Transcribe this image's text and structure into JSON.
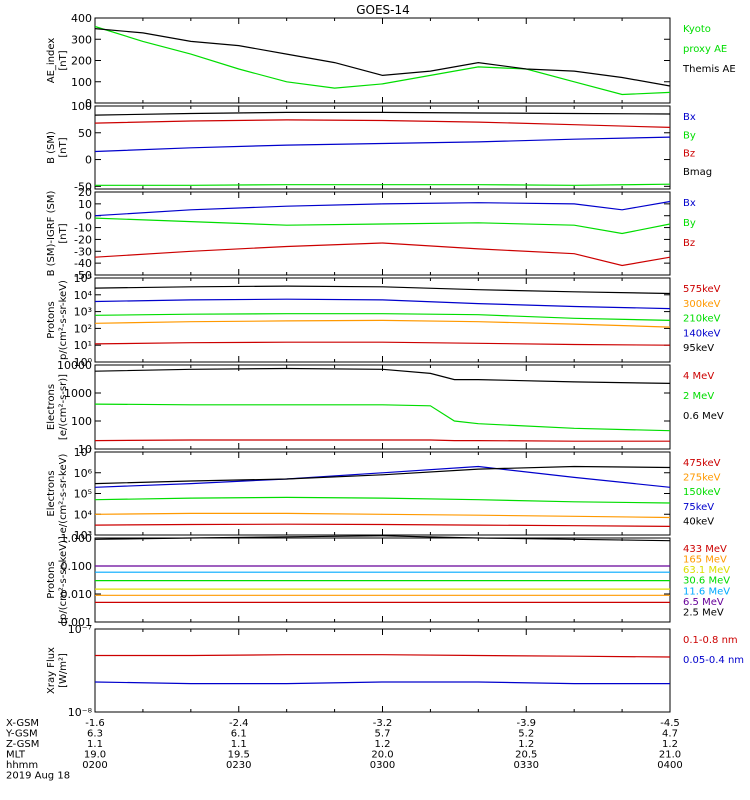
{
  "title": "GOES-14",
  "colors": {
    "black": "#000000",
    "red": "#cc0000",
    "green": "#00dd00",
    "blue": "#0000cc",
    "orange": "#ff9900",
    "yellow": "#dddd00",
    "cyan": "#00aaff",
    "purple": "#660099"
  },
  "chart_data": [
    {
      "type": "line",
      "ylabel": [
        "AE_index",
        "[nT]"
      ],
      "yscale": "linear",
      "ylim": [
        0,
        400
      ],
      "yticks": [
        0,
        100,
        200,
        300,
        400
      ],
      "yticklabels": [
        "0",
        "100",
        "200",
        "300",
        "400"
      ],
      "x": [
        "02:00",
        "02:10",
        "02:20",
        "02:30",
        "02:40",
        "02:50",
        "03:00",
        "03:10",
        "03:20",
        "03:30",
        "03:40",
        "03:50",
        "04:00"
      ],
      "series": [
        {
          "name": "Kyoto proxy AE",
          "label_lines": [
            "Kyoto",
            "proxy AE"
          ],
          "color": "green",
          "values": [
            360,
            290,
            230,
            160,
            100,
            70,
            90,
            130,
            170,
            160,
            100,
            40,
            50
          ]
        },
        {
          "name": "Themis AE",
          "label_lines": [
            "Themis AE"
          ],
          "color": "black",
          "values": [
            350,
            330,
            290,
            270,
            230,
            190,
            130,
            150,
            190,
            160,
            150,
            120,
            80
          ]
        }
      ]
    },
    {
      "type": "line",
      "ylabel": [
        "B (SM)",
        "[nT]"
      ],
      "yscale": "linear",
      "ylim": [
        -55,
        100
      ],
      "yticks": [
        -50,
        0,
        50,
        100
      ],
      "yticklabels": [
        "-50",
        "0",
        "50",
        "100"
      ],
      "x": [
        "02:00",
        "02:20",
        "02:40",
        "03:00",
        "03:20",
        "03:40",
        "04:00"
      ],
      "series": [
        {
          "name": "Bx",
          "label_lines": [
            "Bx"
          ],
          "color": "blue",
          "values": [
            15,
            22,
            27,
            30,
            33,
            38,
            42
          ]
        },
        {
          "name": "By",
          "label_lines": [
            "By"
          ],
          "color": "green",
          "values": [
            -48,
            -48,
            -47,
            -47,
            -47,
            -48,
            -46
          ]
        },
        {
          "name": "Bz",
          "label_lines": [
            "Bz"
          ],
          "color": "red",
          "values": [
            68,
            72,
            74,
            73,
            70,
            65,
            60
          ]
        },
        {
          "name": "Bmag",
          "label_lines": [
            "Bmag"
          ],
          "color": "black",
          "values": [
            83,
            86,
            88,
            88,
            87,
            86,
            85
          ]
        }
      ]
    },
    {
      "type": "line",
      "ylabel": [
        "B (SM)-IGRF (SM)",
        "[nT]"
      ],
      "yscale": "linear",
      "ylim": [
        -50,
        20
      ],
      "yticks": [
        -50,
        -40,
        -30,
        -20,
        -10,
        0,
        10,
        20
      ],
      "yticklabels": [
        "-50",
        "-40",
        "-30",
        "-20",
        "-10",
        "0",
        "10",
        "20"
      ],
      "x": [
        "02:00",
        "02:20",
        "02:40",
        "03:00",
        "03:20",
        "03:40",
        "03:50",
        "04:00"
      ],
      "series": [
        {
          "name": "Bx",
          "label_lines": [
            "Bx"
          ],
          "color": "blue",
          "values": [
            0,
            5,
            8,
            10,
            11,
            10,
            5,
            12
          ]
        },
        {
          "name": "By",
          "label_lines": [
            "By"
          ],
          "color": "green",
          "values": [
            -2,
            -5,
            -8,
            -7,
            -6,
            -8,
            -15,
            -7
          ]
        },
        {
          "name": "Bz",
          "label_lines": [
            "Bz"
          ],
          "color": "red",
          "values": [
            -35,
            -30,
            -26,
            -23,
            -28,
            -32,
            -42,
            -35
          ]
        }
      ]
    },
    {
      "type": "line",
      "ylabel": [
        "Protons",
        "p/(cm²-s-sr-keV)"
      ],
      "yscale": "log",
      "ylim": [
        1,
        100000
      ],
      "yticks": [
        1,
        10,
        100,
        1000,
        10000,
        100000
      ],
      "yticklabels": [
        "10⁰",
        "10¹",
        "10²",
        "10³",
        "10⁴",
        "10⁵"
      ],
      "x": [
        "02:00",
        "02:20",
        "02:40",
        "03:00",
        "03:20",
        "03:40",
        "04:00"
      ],
      "series": [
        {
          "name": "575keV",
          "label_lines": [
            "575keV"
          ],
          "color": "red",
          "values": [
            12,
            14,
            15,
            15,
            13,
            11,
            10
          ]
        },
        {
          "name": "300keV",
          "label_lines": [
            "300keV"
          ],
          "color": "orange",
          "values": [
            200,
            250,
            280,
            300,
            250,
            180,
            120
          ]
        },
        {
          "name": "210keV",
          "label_lines": [
            "210keV"
          ],
          "color": "green",
          "values": [
            600,
            700,
            750,
            750,
            650,
            400,
            300
          ]
        },
        {
          "name": "140keV",
          "label_lines": [
            "140keV"
          ],
          "color": "blue",
          "values": [
            4000,
            5000,
            5500,
            5000,
            3000,
            2000,
            1500
          ]
        },
        {
          "name": "95keV",
          "label_lines": [
            "95keV"
          ],
          "color": "black",
          "values": [
            25000,
            30000,
            33000,
            30000,
            20000,
            15000,
            12000
          ]
        }
      ]
    },
    {
      "type": "line",
      "ylabel": [
        "Electrons",
        "[e/(cm²-s-sr)]"
      ],
      "yscale": "log",
      "ylim": [
        10,
        10000
      ],
      "yticks": [
        10,
        100,
        1000,
        10000
      ],
      "yticklabels": [
        "10",
        "100",
        "1000",
        "10000"
      ],
      "x": [
        "02:00",
        "02:20",
        "02:40",
        "03:00",
        "03:10",
        "03:15",
        "03:20",
        "03:40",
        "04:00"
      ],
      "series": [
        {
          "name": "4 MeV",
          "label_lines": [
            "4 MeV"
          ],
          "color": "red",
          "values": [
            20,
            21,
            21,
            21,
            21,
            20,
            20,
            19,
            19
          ]
        },
        {
          "name": "2 MeV",
          "label_lines": [
            "2 MeV"
          ],
          "color": "green",
          "values": [
            400,
            380,
            380,
            380,
            350,
            100,
            80,
            55,
            45
          ]
        },
        {
          "name": "0.6 MeV",
          "label_lines": [
            "0.6 MeV"
          ],
          "color": "black",
          "values": [
            6000,
            7000,
            7500,
            7000,
            5000,
            3000,
            3000,
            2500,
            2200
          ]
        }
      ]
    },
    {
      "type": "line",
      "ylabel": [
        "Electrons",
        "e/(cm²-s-sr-keV)"
      ],
      "yscale": "log",
      "ylim": [
        1000,
        10000000
      ],
      "yticks": [
        1000,
        10000,
        100000,
        1000000,
        10000000
      ],
      "yticklabels": [
        "10³",
        "10⁴",
        "10⁵",
        "10⁶",
        "10⁷"
      ],
      "x": [
        "02:00",
        "02:20",
        "02:40",
        "03:00",
        "03:20",
        "03:40",
        "04:00"
      ],
      "series": [
        {
          "name": "475keV",
          "label_lines": [
            "475keV"
          ],
          "color": "red",
          "values": [
            3000,
            3200,
            3300,
            3200,
            3000,
            2800,
            2600
          ]
        },
        {
          "name": "275keV",
          "label_lines": [
            "275keV"
          ],
          "color": "orange",
          "values": [
            10000,
            11000,
            11000,
            10000,
            9000,
            8000,
            7000
          ]
        },
        {
          "name": "150keV",
          "label_lines": [
            "150keV"
          ],
          "color": "green",
          "values": [
            50000,
            60000,
            65000,
            60000,
            50000,
            40000,
            35000
          ]
        },
        {
          "name": "75keV",
          "label_lines": [
            "75keV"
          ],
          "color": "blue",
          "values": [
            200000,
            300000,
            500000,
            1000000,
            2000000,
            600000,
            200000
          ]
        },
        {
          "name": "40keV",
          "label_lines": [
            "40keV"
          ],
          "color": "black",
          "values": [
            300000,
            400000,
            500000,
            800000,
            1500000,
            2000000,
            1800000
          ]
        }
      ]
    },
    {
      "type": "line",
      "ylabel": [
        "Protons",
        "[p/(cm²-s-sr-keV)]"
      ],
      "yscale": "log",
      "ylim": [
        0.001,
        1.0
      ],
      "yticks": [
        0.001,
        0.01,
        0.1,
        1.0
      ],
      "yticklabels": [
        "0.001",
        "0.010",
        "0.100",
        "1.000"
      ],
      "x": [
        "02:00",
        "02:20",
        "02:40",
        "03:00",
        "03:20",
        "03:40",
        "04:00"
      ],
      "series": [
        {
          "name": "433 MeV",
          "label_lines": [
            "433 MeV"
          ],
          "color": "red",
          "values": [
            0.005,
            0.005,
            0.005,
            0.005,
            0.005,
            0.005,
            0.005
          ]
        },
        {
          "name": "165 MeV",
          "label_lines": [
            "165 MeV"
          ],
          "color": "orange",
          "values": [
            0.009,
            0.009,
            0.009,
            0.009,
            0.009,
            0.009,
            0.009
          ]
        },
        {
          "name": "63.1 MeV",
          "label_lines": [
            "63.1 MeV"
          ],
          "color": "yellow",
          "values": [
            0.015,
            0.015,
            0.015,
            0.015,
            0.015,
            0.015,
            0.015
          ]
        },
        {
          "name": "30.6 MeV",
          "label_lines": [
            "30.6 MeV"
          ],
          "color": "green",
          "values": [
            0.03,
            0.03,
            0.03,
            0.03,
            0.03,
            0.03,
            0.03
          ]
        },
        {
          "name": "11.6 MeV",
          "label_lines": [
            "11.6 MeV"
          ],
          "color": "cyan",
          "values": [
            0.06,
            0.06,
            0.06,
            0.06,
            0.06,
            0.06,
            0.06
          ]
        },
        {
          "name": "6.5 MeV",
          "label_lines": [
            "6.5 MeV"
          ],
          "color": "purple",
          "values": [
            0.1,
            0.1,
            0.1,
            0.1,
            0.1,
            0.1,
            0.1
          ]
        },
        {
          "name": "2.5 MeV",
          "label_lines": [
            "2.5 MeV"
          ],
          "color": "black",
          "values": [
            0.9,
            1.0,
            1.1,
            1.2,
            1.0,
            0.9,
            0.8
          ]
        }
      ]
    },
    {
      "type": "line",
      "ylabel": [
        "Xray Flux",
        "[W/m²]"
      ],
      "yscale": "log",
      "ylim": [
        1e-08,
        1e-07
      ],
      "yticks": [
        1e-08,
        1e-07
      ],
      "yticklabels": [
        "10⁻⁸",
        "10⁻⁷"
      ],
      "x": [
        "02:00",
        "02:20",
        "02:40",
        "03:00",
        "03:20",
        "03:40",
        "04:00"
      ],
      "series": [
        {
          "name": "0.1-0.8 nm",
          "label_lines": [
            "0.1-0.8 nm"
          ],
          "color": "red",
          "values": [
            4.8e-08,
            4.8e-08,
            4.9e-08,
            4.9e-08,
            4.8e-08,
            4.7e-08,
            4.6e-08
          ]
        },
        {
          "name": "0.05-0.4 nm",
          "label_lines": [
            "0.05-0.4 nm"
          ],
          "color": "blue",
          "values": [
            2.3e-08,
            2.2e-08,
            2.2e-08,
            2.3e-08,
            2.3e-08,
            2.2e-08,
            2.2e-08
          ]
        }
      ]
    }
  ],
  "x_axis": {
    "minutes_from_start": [
      0,
      30,
      60,
      90,
      120
    ],
    "row_labels": [
      "X-GSM",
      "Y-GSM",
      "Z-GSM",
      "MLT",
      "hhmm"
    ],
    "columns": [
      [
        "-1.6",
        "6.3",
        "1.1",
        "19.0",
        "0200"
      ],
      [
        "-2.4",
        "6.1",
        "1.1",
        "19.5",
        "0230"
      ],
      [
        "-3.2",
        "5.7",
        "1.2",
        "20.0",
        "0300"
      ],
      [
        "-3.9",
        "5.2",
        "1.2",
        "20.5",
        "0330"
      ],
      [
        "-4.5",
        "4.7",
        "1.2",
        "21.0",
        "0400"
      ]
    ],
    "date": "2019 Aug 18"
  }
}
